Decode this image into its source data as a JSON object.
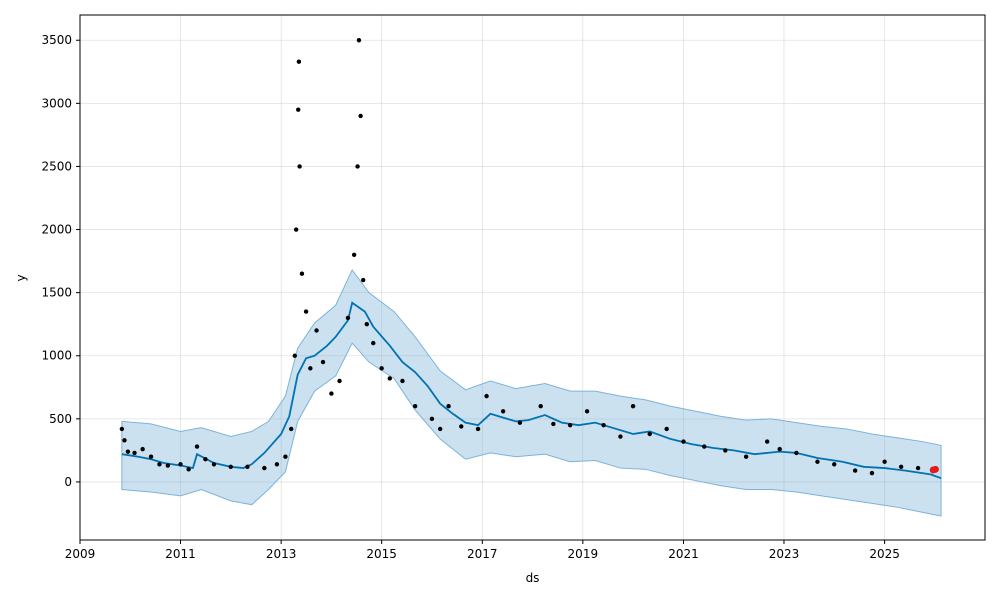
{
  "chart_data": {
    "type": "line",
    "title": "",
    "xlabel": "ds",
    "ylabel": "y",
    "xlim": [
      "2009-01-01",
      "2026-12-31"
    ],
    "ylim": [
      -460,
      3700
    ],
    "x_ticks": [
      "2009",
      "2011",
      "2013",
      "2015",
      "2017",
      "2019",
      "2021",
      "2023",
      "2025"
    ],
    "y_ticks": [
      0,
      500,
      1000,
      1500,
      2000,
      2500,
      3000,
      3500
    ],
    "grid": true,
    "colors": {
      "forecast_line": "#0072B2",
      "uncertainty_band": "#7db3d8",
      "observations": "#000000",
      "highlight": "#e41a1c"
    },
    "series": [
      {
        "kind": "forecast",
        "points": [
          [
            "2009-11-01",
            220
          ],
          [
            "2010-03-01",
            200
          ],
          [
            "2010-06-01",
            180
          ],
          [
            "2010-09-01",
            150
          ],
          [
            "2011-01-01",
            130
          ],
          [
            "2011-04-01",
            110
          ],
          [
            "2011-05-01",
            220
          ],
          [
            "2011-09-01",
            150
          ],
          [
            "2012-01-01",
            120
          ],
          [
            "2012-04-01",
            110
          ],
          [
            "2012-06-01",
            140
          ],
          [
            "2012-09-01",
            230
          ],
          [
            "2013-01-01",
            380
          ],
          [
            "2013-03-01",
            520
          ],
          [
            "2013-05-01",
            850
          ],
          [
            "2013-07-01",
            980
          ],
          [
            "2013-09-01",
            1000
          ],
          [
            "2013-12-01",
            1080
          ],
          [
            "2014-02-01",
            1150
          ],
          [
            "2014-05-01",
            1280
          ],
          [
            "2014-06-01",
            1420
          ],
          [
            "2014-09-01",
            1350
          ],
          [
            "2014-11-01",
            1230
          ],
          [
            "2015-03-01",
            1080
          ],
          [
            "2015-06-01",
            950
          ],
          [
            "2015-09-01",
            870
          ],
          [
            "2015-12-01",
            760
          ],
          [
            "2016-03-01",
            620
          ],
          [
            "2016-06-01",
            540
          ],
          [
            "2016-09-01",
            470
          ],
          [
            "2016-12-01",
            450
          ],
          [
            "2017-03-01",
            540
          ],
          [
            "2017-06-01",
            510
          ],
          [
            "2017-09-01",
            480
          ],
          [
            "2017-12-01",
            490
          ],
          [
            "2018-04-01",
            530
          ],
          [
            "2018-08-01",
            470
          ],
          [
            "2018-12-01",
            450
          ],
          [
            "2019-04-01",
            470
          ],
          [
            "2019-09-01",
            420
          ],
          [
            "2020-01-01",
            380
          ],
          [
            "2020-05-01",
            400
          ],
          [
            "2020-10-01",
            340
          ],
          [
            "2021-03-01",
            300
          ],
          [
            "2021-08-01",
            270
          ],
          [
            "2022-01-01",
            250
          ],
          [
            "2022-06-01",
            220
          ],
          [
            "2022-12-01",
            240
          ],
          [
            "2023-04-01",
            230
          ],
          [
            "2023-09-01",
            190
          ],
          [
            "2024-03-01",
            160
          ],
          [
            "2024-08-01",
            120
          ],
          [
            "2025-01-01",
            110
          ],
          [
            "2025-06-01",
            90
          ],
          [
            "2025-12-01",
            60
          ],
          [
            "2026-02-15",
            30
          ]
        ]
      },
      {
        "kind": "uncertainty_band",
        "upper": [
          [
            "2009-11-01",
            480
          ],
          [
            "2010-06-01",
            460
          ],
          [
            "2011-01-01",
            400
          ],
          [
            "2011-06-01",
            430
          ],
          [
            "2012-01-01",
            360
          ],
          [
            "2012-06-01",
            400
          ],
          [
            "2012-10-01",
            480
          ],
          [
            "2013-02-01",
            680
          ],
          [
            "2013-05-01",
            1060
          ],
          [
            "2013-09-01",
            1260
          ],
          [
            "2014-02-01",
            1400
          ],
          [
            "2014-06-01",
            1680
          ],
          [
            "2014-10-01",
            1500
          ],
          [
            "2015-04-01",
            1350
          ],
          [
            "2015-09-01",
            1150
          ],
          [
            "2016-03-01",
            880
          ],
          [
            "2016-09-01",
            730
          ],
          [
            "2017-03-01",
            800
          ],
          [
            "2017-09-01",
            740
          ],
          [
            "2018-04-01",
            780
          ],
          [
            "2018-10-01",
            720
          ],
          [
            "2019-04-01",
            720
          ],
          [
            "2019-10-01",
            680
          ],
          [
            "2020-04-01",
            650
          ],
          [
            "2020-10-01",
            600
          ],
          [
            "2021-04-01",
            560
          ],
          [
            "2021-10-01",
            520
          ],
          [
            "2022-04-01",
            490
          ],
          [
            "2022-10-01",
            500
          ],
          [
            "2023-04-01",
            470
          ],
          [
            "2023-10-01",
            440
          ],
          [
            "2024-04-01",
            420
          ],
          [
            "2024-10-01",
            380
          ],
          [
            "2025-04-01",
            350
          ],
          [
            "2025-10-01",
            320
          ],
          [
            "2026-02-15",
            290
          ]
        ],
        "lower": [
          [
            "2009-11-01",
            -60
          ],
          [
            "2010-06-01",
            -80
          ],
          [
            "2011-01-01",
            -110
          ],
          [
            "2011-06-01",
            -60
          ],
          [
            "2012-01-01",
            -150
          ],
          [
            "2012-06-01",
            -180
          ],
          [
            "2012-10-01",
            -60
          ],
          [
            "2013-02-01",
            80
          ],
          [
            "2013-05-01",
            480
          ],
          [
            "2013-09-01",
            720
          ],
          [
            "2014-02-01",
            840
          ],
          [
            "2014-06-01",
            1100
          ],
          [
            "2014-10-01",
            950
          ],
          [
            "2015-04-01",
            820
          ],
          [
            "2015-09-01",
            570
          ],
          [
            "2016-03-01",
            340
          ],
          [
            "2016-09-01",
            180
          ],
          [
            "2017-03-01",
            230
          ],
          [
            "2017-09-01",
            200
          ],
          [
            "2018-04-01",
            220
          ],
          [
            "2018-10-01",
            160
          ],
          [
            "2019-04-01",
            170
          ],
          [
            "2019-10-01",
            110
          ],
          [
            "2020-04-01",
            100
          ],
          [
            "2020-10-01",
            50
          ],
          [
            "2021-04-01",
            10
          ],
          [
            "2021-10-01",
            -30
          ],
          [
            "2022-04-01",
            -60
          ],
          [
            "2022-10-01",
            -60
          ],
          [
            "2023-04-01",
            -80
          ],
          [
            "2023-10-01",
            -110
          ],
          [
            "2024-04-01",
            -140
          ],
          [
            "2024-10-01",
            -170
          ],
          [
            "2025-04-01",
            -200
          ],
          [
            "2025-10-01",
            -240
          ],
          [
            "2026-02-15",
            -270
          ]
        ]
      },
      {
        "kind": "observations",
        "points": [
          [
            "2009-11-01",
            420
          ],
          [
            "2009-11-20",
            330
          ],
          [
            "2009-12-15",
            240
          ],
          [
            "2010-02-01",
            230
          ],
          [
            "2010-04-01",
            260
          ],
          [
            "2010-06-01",
            200
          ],
          [
            "2010-08-01",
            140
          ],
          [
            "2010-10-01",
            130
          ],
          [
            "2011-01-01",
            140
          ],
          [
            "2011-03-01",
            100
          ],
          [
            "2011-05-01",
            280
          ],
          [
            "2011-07-01",
            180
          ],
          [
            "2011-09-01",
            140
          ],
          [
            "2012-01-01",
            120
          ],
          [
            "2012-05-01",
            120
          ],
          [
            "2012-09-01",
            110
          ],
          [
            "2012-12-01",
            140
          ],
          [
            "2013-02-01",
            200
          ],
          [
            "2013-03-15",
            420
          ],
          [
            "2013-04-10",
            1000
          ],
          [
            "2013-04-20",
            2000
          ],
          [
            "2013-05-05",
            2950
          ],
          [
            "2013-05-10",
            3330
          ],
          [
            "2013-05-15",
            2500
          ],
          [
            "2013-06-01",
            1650
          ],
          [
            "2013-07-01",
            1350
          ],
          [
            "2013-08-01",
            900
          ],
          [
            "2013-09-15",
            1200
          ],
          [
            "2013-11-01",
            950
          ],
          [
            "2014-01-01",
            700
          ],
          [
            "2014-03-01",
            800
          ],
          [
            "2014-05-01",
            1300
          ],
          [
            "2014-06-15",
            1800
          ],
          [
            "2014-07-10",
            2500
          ],
          [
            "2014-07-20",
            3500
          ],
          [
            "2014-08-01",
            2900
          ],
          [
            "2014-08-20",
            1600
          ],
          [
            "2014-09-15",
            1250
          ],
          [
            "2014-11-01",
            1100
          ],
          [
            "2015-01-01",
            900
          ],
          [
            "2015-03-01",
            820
          ],
          [
            "2015-06-01",
            800
          ],
          [
            "2015-09-01",
            600
          ],
          [
            "2016-01-01",
            500
          ],
          [
            "2016-03-01",
            420
          ],
          [
            "2016-05-01",
            600
          ],
          [
            "2016-08-01",
            440
          ],
          [
            "2016-12-01",
            420
          ],
          [
            "2017-02-01",
            680
          ],
          [
            "2017-06-01",
            560
          ],
          [
            "2017-10-01",
            470
          ],
          [
            "2018-03-01",
            600
          ],
          [
            "2018-06-01",
            460
          ],
          [
            "2018-10-01",
            450
          ],
          [
            "2019-02-01",
            560
          ],
          [
            "2019-06-01",
            450
          ],
          [
            "2019-10-01",
            360
          ],
          [
            "2020-01-01",
            600
          ],
          [
            "2020-05-01",
            380
          ],
          [
            "2020-09-01",
            420
          ],
          [
            "2021-01-01",
            320
          ],
          [
            "2021-06-01",
            280
          ],
          [
            "2021-11-01",
            250
          ],
          [
            "2022-04-01",
            200
          ],
          [
            "2022-09-01",
            320
          ],
          [
            "2022-12-01",
            260
          ],
          [
            "2023-04-01",
            230
          ],
          [
            "2023-09-01",
            160
          ],
          [
            "2024-01-01",
            140
          ],
          [
            "2024-06-01",
            90
          ],
          [
            "2024-10-01",
            70
          ],
          [
            "2025-01-01",
            160
          ],
          [
            "2025-05-01",
            120
          ],
          [
            "2025-09-01",
            110
          ],
          [
            "2025-12-15",
            100
          ]
        ]
      },
      {
        "kind": "highlight",
        "points": [
          [
            "2025-12-20",
            95
          ],
          [
            "2026-01-05",
            100
          ]
        ]
      }
    ]
  }
}
